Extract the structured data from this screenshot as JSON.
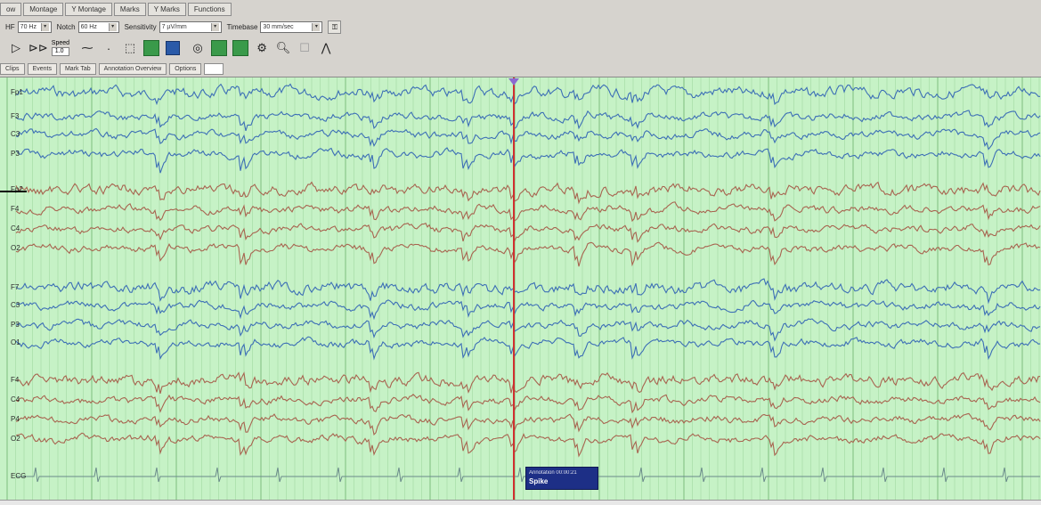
{
  "window": {
    "title": ""
  },
  "tabs": [
    {
      "label": "ow"
    },
    {
      "label": "Montage"
    },
    {
      "label": "Y Montage"
    },
    {
      "label": "Marks"
    },
    {
      "label": "Y Marks"
    },
    {
      "label": "Functions"
    }
  ],
  "controls": {
    "filter_label": "HF",
    "filter_value": "70 Hz",
    "notch_label": "Notch",
    "notch_value": "60 Hz",
    "sensitivity_label": "Sensitivity",
    "sensitivity_value": "7 µV/mm",
    "timebase_label": "Timebase",
    "timebase_value": "30 mm/sec"
  },
  "speed": {
    "label": "Speed",
    "value": "1.0"
  },
  "action_buttons": [
    {
      "label": "Clips"
    },
    {
      "label": "Events"
    },
    {
      "label": "Mark Tab"
    },
    {
      "label": "Annotation Overview"
    },
    {
      "label": "Options"
    }
  ],
  "channels": [
    {
      "label": "Fp1",
      "color": "#3d6fb6"
    },
    {
      "label": "F3",
      "color": "#3d6fb6"
    },
    {
      "label": "C3",
      "color": "#3d6fb6"
    },
    {
      "label": "P3",
      "color": "#3d6fb6"
    },
    {
      "label": "Fp2",
      "color": "#a86450"
    },
    {
      "label": "F4",
      "color": "#a86450"
    },
    {
      "label": "C4",
      "color": "#a86450"
    },
    {
      "label": "O2",
      "color": "#a86450"
    },
    {
      "label": "F7",
      "color": "#3d6fb6"
    },
    {
      "label": "C3",
      "color": "#3d6fb6"
    },
    {
      "label": "P3",
      "color": "#3d6fb6"
    },
    {
      "label": "O1",
      "color": "#3d6fb6"
    },
    {
      "label": "F4",
      "color": "#a86450"
    },
    {
      "label": "C4",
      "color": "#a86450"
    },
    {
      "label": "P4",
      "color": "#a86450"
    },
    {
      "label": "O2",
      "color": "#a86450"
    },
    {
      "label": "ECG",
      "color": "#6a8a8a"
    }
  ],
  "event_note": {
    "top": "Annotation 00:00:21",
    "label": "Spike"
  },
  "colors": {
    "background": "#c6f2c6",
    "grid_line": "#9ad49a",
    "grid_bold": "#7fbf7f",
    "marker_red": "#d03030",
    "marker_purple": "#8a6ad0"
  }
}
